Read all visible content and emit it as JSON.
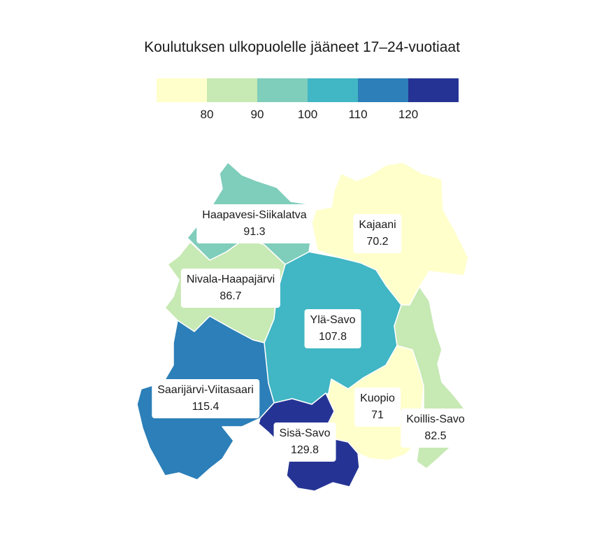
{
  "title": "Koulutuksen ulkopuolelle jääneet 17–24-vuotiaat",
  "legend": {
    "colors": [
      "#ffffcc",
      "#c7e9b4",
      "#7fcdbb",
      "#41b6c4",
      "#2c7fb8",
      "#253494"
    ],
    "ticks": [
      "80",
      "90",
      "100",
      "110",
      "120"
    ]
  },
  "regions": [
    {
      "name": "Haapavesi-Siikalatva",
      "value": "91.3",
      "color": "#7fcdbb"
    },
    {
      "name": "Kajaani",
      "value": "70.2",
      "color": "#ffffcc"
    },
    {
      "name": "Nivala-Haapajärvi",
      "value": "86.7",
      "color": "#c7e9b4"
    },
    {
      "name": "Ylä-Savo",
      "value": "107.8",
      "color": "#41b6c4"
    },
    {
      "name": "Saarijärvi-Viitasaari",
      "value": "115.4",
      "color": "#2c7fb8"
    },
    {
      "name": "Kuopio",
      "value": "71",
      "color": "#ffffcc"
    },
    {
      "name": "Koillis-Savo",
      "value": "82.5",
      "color": "#c7e9b4"
    },
    {
      "name": "Sisä-Savo",
      "value": "129.8",
      "color": "#253494"
    }
  ]
}
